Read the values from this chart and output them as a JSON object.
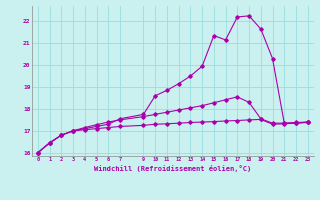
{
  "title": "",
  "xlabel": "Windchill (Refroidissement éolien,°C)",
  "bg_color": "#caf0f0",
  "grid_color": "#99dddd",
  "line_color": "#aa00aa",
  "xlim": [
    -0.5,
    23.5
  ],
  "ylim": [
    15.85,
    22.7
  ],
  "xticks": [
    0,
    1,
    2,
    3,
    4,
    5,
    6,
    7,
    9,
    10,
    11,
    12,
    13,
    14,
    15,
    16,
    17,
    18,
    19,
    20,
    21,
    22,
    23
  ],
  "yticks": [
    16,
    17,
    18,
    19,
    20,
    21,
    22
  ],
  "series": {
    "line1_x": [
      0,
      1,
      2,
      3,
      4,
      5,
      6,
      7,
      9,
      10,
      11,
      12,
      13,
      14,
      15,
      16,
      17,
      18,
      19,
      20,
      21,
      22,
      23
    ],
    "line1_y": [
      16.0,
      16.45,
      16.8,
      17.0,
      17.05,
      17.1,
      17.15,
      17.2,
      17.25,
      17.3,
      17.32,
      17.35,
      17.38,
      17.4,
      17.42,
      17.45,
      17.47,
      17.5,
      17.52,
      17.3,
      17.32,
      17.35,
      17.38
    ],
    "line2_x": [
      0,
      1,
      2,
      3,
      4,
      5,
      6,
      7,
      9,
      10,
      11,
      12,
      13,
      14,
      15,
      16,
      17,
      18,
      19,
      20,
      21,
      22,
      23
    ],
    "line2_y": [
      16.0,
      16.45,
      16.8,
      17.0,
      17.15,
      17.28,
      17.4,
      17.5,
      17.65,
      17.75,
      17.85,
      17.95,
      18.05,
      18.15,
      18.28,
      18.42,
      18.55,
      18.3,
      17.55,
      17.35,
      17.35,
      17.38,
      17.4
    ],
    "line3_x": [
      0,
      1,
      2,
      3,
      4,
      5,
      6,
      7,
      9,
      10,
      11,
      12,
      13,
      14,
      15,
      16,
      17,
      18,
      19,
      20,
      21,
      22,
      23
    ],
    "line3_y": [
      16.0,
      16.45,
      16.8,
      17.0,
      17.1,
      17.2,
      17.3,
      17.55,
      17.75,
      18.6,
      18.85,
      19.15,
      19.5,
      19.95,
      21.35,
      21.15,
      22.2,
      22.25,
      21.65,
      20.3,
      17.35,
      17.35,
      17.4
    ]
  }
}
